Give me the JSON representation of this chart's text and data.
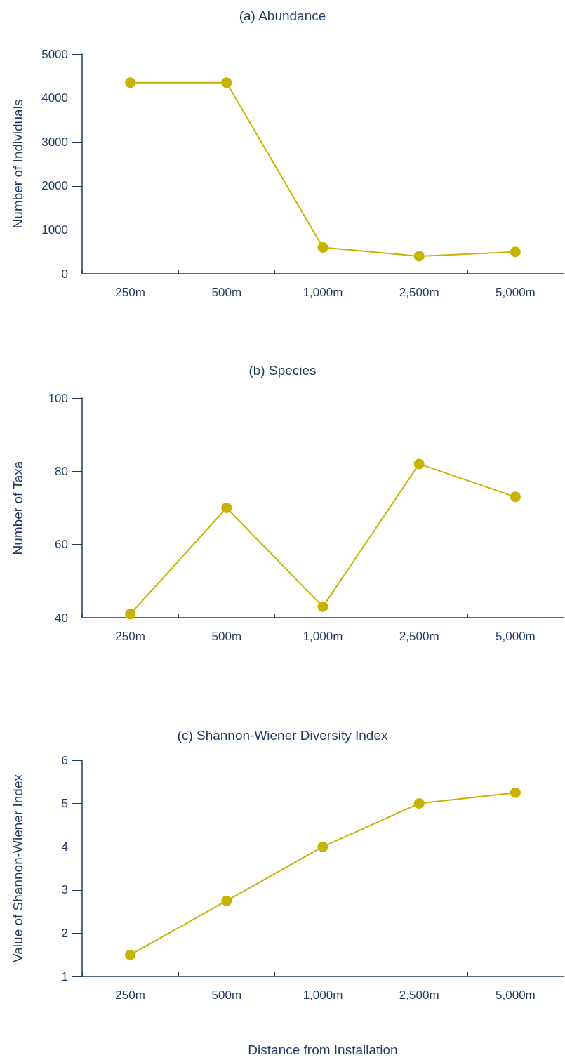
{
  "chart_data": [
    {
      "type": "line",
      "title": "(a) Abundance",
      "ylabel": "Number of Individuals",
      "categories": [
        "250m",
        "500m",
        "1,000m",
        "2,500m",
        "5,000m"
      ],
      "series": [
        {
          "color": "#c8b400",
          "values": [
            4350,
            4350,
            600,
            400,
            500
          ]
        }
      ],
      "ylim": [
        0,
        5000
      ],
      "yticks": [
        0,
        1000,
        2000,
        3000,
        4000,
        5000
      ],
      "grid": false,
      "legend": false,
      "marker": "circle",
      "line_style": "solid"
    },
    {
      "type": "line",
      "title": "(b) Species",
      "ylabel": "Number of Taxa",
      "categories": [
        "250m",
        "500m",
        "1,000m",
        "2,500m",
        "5,000m"
      ],
      "series": [
        {
          "color": "#c8b400",
          "values": [
            41,
            70,
            43,
            82,
            73
          ]
        }
      ],
      "ylim": [
        40,
        100
      ],
      "yticks": [
        40,
        60,
        80,
        100
      ],
      "grid": false,
      "legend": false,
      "marker": "circle",
      "line_style": "solid"
    },
    {
      "type": "line",
      "title": "(c) Shannon-Wiener Diversity Index",
      "ylabel": "Value of Shannon-Wiener Index",
      "xlabel": "Distance from Installation",
      "categories": [
        "250m",
        "500m",
        "1,000m",
        "2,500m",
        "5,000m"
      ],
      "series": [
        {
          "color": "#c8b400",
          "values": [
            1.5,
            2.75,
            4,
            5,
            5.25
          ]
        }
      ],
      "ylim": [
        1,
        6
      ],
      "yticks": [
        1,
        2,
        3,
        4,
        5,
        6
      ],
      "grid": false,
      "legend": false,
      "marker": "circle",
      "line_style": "solid"
    }
  ]
}
